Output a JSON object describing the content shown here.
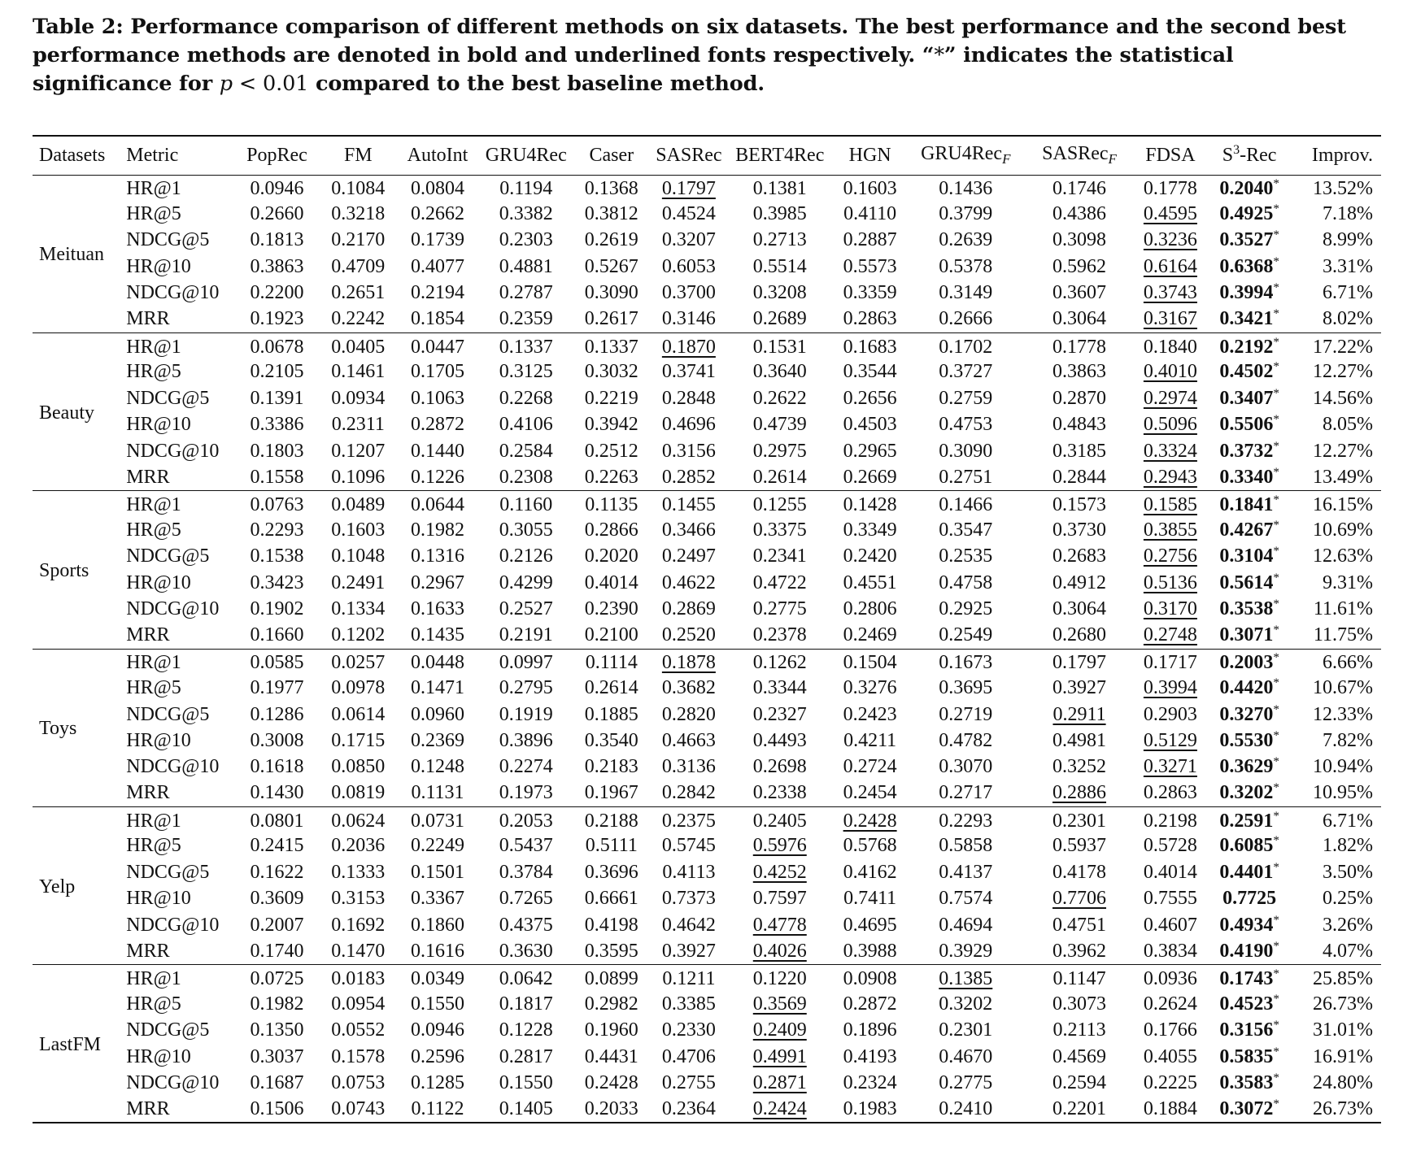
{
  "caption": {
    "part1": "Table 2: Performance comparison of different methods on six datasets. The best performance and the second best performance methods are denoted in bold and underlined fonts respectively. “",
    "star": "*",
    "part2": "” indicates the statistical significance for ",
    "p": "p",
    "lt": " < 0.01",
    "part3": " compared to the best baseline method."
  },
  "headers": {
    "datasets": "Datasets",
    "metric": "Metric",
    "methods": [
      "PopRec",
      "FM",
      "AutoInt",
      "GRU4Rec",
      "Caser",
      "SASRec",
      "BERT4Rec",
      "HGN",
      "GRU4Rec",
      "SASRec",
      "FDSA",
      "S",
      "Improv."
    ],
    "subscript_f": "F",
    "s3_sup": "3",
    "s3_suffix": "-Rec"
  },
  "groups": [
    {
      "dataset": "Meituan",
      "rows": [
        {
          "metric": "HR@1",
          "values": [
            "0.0946",
            "0.1084",
            "0.0804",
            "0.1194",
            "0.1368",
            "0.1797",
            "0.1381",
            "0.1603",
            "0.1436",
            "0.1746",
            "0.1778",
            "0.2040"
          ],
          "imp": "13.52%",
          "second": 5,
          "sig": true
        },
        {
          "metric": "HR@5",
          "values": [
            "0.2660",
            "0.3218",
            "0.2662",
            "0.3382",
            "0.3812",
            "0.4524",
            "0.3985",
            "0.4110",
            "0.3799",
            "0.4386",
            "0.4595",
            "0.4925"
          ],
          "imp": "7.18%",
          "second": 10,
          "sig": true
        },
        {
          "metric": "NDCG@5",
          "values": [
            "0.1813",
            "0.2170",
            "0.1739",
            "0.2303",
            "0.2619",
            "0.3207",
            "0.2713",
            "0.2887",
            "0.2639",
            "0.3098",
            "0.3236",
            "0.3527"
          ],
          "imp": "8.99%",
          "second": 10,
          "sig": true
        },
        {
          "metric": "HR@10",
          "values": [
            "0.3863",
            "0.4709",
            "0.4077",
            "0.4881",
            "0.5267",
            "0.6053",
            "0.5514",
            "0.5573",
            "0.5378",
            "0.5962",
            "0.6164",
            "0.6368"
          ],
          "imp": "3.31%",
          "second": 10,
          "sig": true
        },
        {
          "metric": "NDCG@10",
          "values": [
            "0.2200",
            "0.2651",
            "0.2194",
            "0.2787",
            "0.3090",
            "0.3700",
            "0.3208",
            "0.3359",
            "0.3149",
            "0.3607",
            "0.3743",
            "0.3994"
          ],
          "imp": "6.71%",
          "second": 10,
          "sig": true
        },
        {
          "metric": "MRR",
          "values": [
            "0.1923",
            "0.2242",
            "0.1854",
            "0.2359",
            "0.2617",
            "0.3146",
            "0.2689",
            "0.2863",
            "0.2666",
            "0.3064",
            "0.3167",
            "0.3421"
          ],
          "imp": "8.02%",
          "second": 10,
          "sig": true
        }
      ]
    },
    {
      "dataset": "Beauty",
      "rows": [
        {
          "metric": "HR@1",
          "values": [
            "0.0678",
            "0.0405",
            "0.0447",
            "0.1337",
            "0.1337",
            "0.1870",
            "0.1531",
            "0.1683",
            "0.1702",
            "0.1778",
            "0.1840",
            "0.2192"
          ],
          "imp": "17.22%",
          "second": 5,
          "sig": true
        },
        {
          "metric": "HR@5",
          "values": [
            "0.2105",
            "0.1461",
            "0.1705",
            "0.3125",
            "0.3032",
            "0.3741",
            "0.3640",
            "0.3544",
            "0.3727",
            "0.3863",
            "0.4010",
            "0.4502"
          ],
          "imp": "12.27%",
          "second": 10,
          "sig": true
        },
        {
          "metric": "NDCG@5",
          "values": [
            "0.1391",
            "0.0934",
            "0.1063",
            "0.2268",
            "0.2219",
            "0.2848",
            "0.2622",
            "0.2656",
            "0.2759",
            "0.2870",
            "0.2974",
            "0.3407"
          ],
          "imp": "14.56%",
          "second": 10,
          "sig": true
        },
        {
          "metric": "HR@10",
          "values": [
            "0.3386",
            "0.2311",
            "0.2872",
            "0.4106",
            "0.3942",
            "0.4696",
            "0.4739",
            "0.4503",
            "0.4753",
            "0.4843",
            "0.5096",
            "0.5506"
          ],
          "imp": "8.05%",
          "second": 10,
          "sig": true
        },
        {
          "metric": "NDCG@10",
          "values": [
            "0.1803",
            "0.1207",
            "0.1440",
            "0.2584",
            "0.2512",
            "0.3156",
            "0.2975",
            "0.2965",
            "0.3090",
            "0.3185",
            "0.3324",
            "0.3732"
          ],
          "imp": "12.27%",
          "second": 10,
          "sig": true
        },
        {
          "metric": "MRR",
          "values": [
            "0.1558",
            "0.1096",
            "0.1226",
            "0.2308",
            "0.2263",
            "0.2852",
            "0.2614",
            "0.2669",
            "0.2751",
            "0.2844",
            "0.2943",
            "0.3340"
          ],
          "imp": "13.49%",
          "second": 10,
          "sig": true
        }
      ]
    },
    {
      "dataset": "Sports",
      "rows": [
        {
          "metric": "HR@1",
          "values": [
            "0.0763",
            "0.0489",
            "0.0644",
            "0.1160",
            "0.1135",
            "0.1455",
            "0.1255",
            "0.1428",
            "0.1466",
            "0.1573",
            "0.1585",
            "0.1841"
          ],
          "imp": "16.15%",
          "second": 10,
          "sig": true
        },
        {
          "metric": "HR@5",
          "values": [
            "0.2293",
            "0.1603",
            "0.1982",
            "0.3055",
            "0.2866",
            "0.3466",
            "0.3375",
            "0.3349",
            "0.3547",
            "0.3730",
            "0.3855",
            "0.4267"
          ],
          "imp": "10.69%",
          "second": 10,
          "sig": true
        },
        {
          "metric": "NDCG@5",
          "values": [
            "0.1538",
            "0.1048",
            "0.1316",
            "0.2126",
            "0.2020",
            "0.2497",
            "0.2341",
            "0.2420",
            "0.2535",
            "0.2683",
            "0.2756",
            "0.3104"
          ],
          "imp": "12.63%",
          "second": 10,
          "sig": true
        },
        {
          "metric": "HR@10",
          "values": [
            "0.3423",
            "0.2491",
            "0.2967",
            "0.4299",
            "0.4014",
            "0.4622",
            "0.4722",
            "0.4551",
            "0.4758",
            "0.4912",
            "0.5136",
            "0.5614"
          ],
          "imp": "9.31%",
          "second": 10,
          "sig": true
        },
        {
          "metric": "NDCG@10",
          "values": [
            "0.1902",
            "0.1334",
            "0.1633",
            "0.2527",
            "0.2390",
            "0.2869",
            "0.2775",
            "0.2806",
            "0.2925",
            "0.3064",
            "0.3170",
            "0.3538"
          ],
          "imp": "11.61%",
          "second": 10,
          "sig": true
        },
        {
          "metric": "MRR",
          "values": [
            "0.1660",
            "0.1202",
            "0.1435",
            "0.2191",
            "0.2100",
            "0.2520",
            "0.2378",
            "0.2469",
            "0.2549",
            "0.2680",
            "0.2748",
            "0.3071"
          ],
          "imp": "11.75%",
          "second": 10,
          "sig": true
        }
      ]
    },
    {
      "dataset": "Toys",
      "rows": [
        {
          "metric": "HR@1",
          "values": [
            "0.0585",
            "0.0257",
            "0.0448",
            "0.0997",
            "0.1114",
            "0.1878",
            "0.1262",
            "0.1504",
            "0.1673",
            "0.1797",
            "0.1717",
            "0.2003"
          ],
          "imp": "6.66%",
          "second": 5,
          "sig": true
        },
        {
          "metric": "HR@5",
          "values": [
            "0.1977",
            "0.0978",
            "0.1471",
            "0.2795",
            "0.2614",
            "0.3682",
            "0.3344",
            "0.3276",
            "0.3695",
            "0.3927",
            "0.3994",
            "0.4420"
          ],
          "imp": "10.67%",
          "second": 10,
          "sig": true
        },
        {
          "metric": "NDCG@5",
          "values": [
            "0.1286",
            "0.0614",
            "0.0960",
            "0.1919",
            "0.1885",
            "0.2820",
            "0.2327",
            "0.2423",
            "0.2719",
            "0.2911",
            "0.2903",
            "0.3270"
          ],
          "imp": "12.33%",
          "second": 9,
          "sig": true
        },
        {
          "metric": "HR@10",
          "values": [
            "0.3008",
            "0.1715",
            "0.2369",
            "0.3896",
            "0.3540",
            "0.4663",
            "0.4493",
            "0.4211",
            "0.4782",
            "0.4981",
            "0.5129",
            "0.5530"
          ],
          "imp": "7.82%",
          "second": 10,
          "sig": true
        },
        {
          "metric": "NDCG@10",
          "values": [
            "0.1618",
            "0.0850",
            "0.1248",
            "0.2274",
            "0.2183",
            "0.3136",
            "0.2698",
            "0.2724",
            "0.3070",
            "0.3252",
            "0.3271",
            "0.3629"
          ],
          "imp": "10.94%",
          "second": 10,
          "sig": true
        },
        {
          "metric": "MRR",
          "values": [
            "0.1430",
            "0.0819",
            "0.1131",
            "0.1973",
            "0.1967",
            "0.2842",
            "0.2338",
            "0.2454",
            "0.2717",
            "0.2886",
            "0.2863",
            "0.3202"
          ],
          "imp": "10.95%",
          "second": 9,
          "sig": true
        }
      ]
    },
    {
      "dataset": "Yelp",
      "rows": [
        {
          "metric": "HR@1",
          "values": [
            "0.0801",
            "0.0624",
            "0.0731",
            "0.2053",
            "0.2188",
            "0.2375",
            "0.2405",
            "0.2428",
            "0.2293",
            "0.2301",
            "0.2198",
            "0.2591"
          ],
          "imp": "6.71%",
          "second": 7,
          "sig": true
        },
        {
          "metric": "HR@5",
          "values": [
            "0.2415",
            "0.2036",
            "0.2249",
            "0.5437",
            "0.5111",
            "0.5745",
            "0.5976",
            "0.5768",
            "0.5858",
            "0.5937",
            "0.5728",
            "0.6085"
          ],
          "imp": "1.82%",
          "second": 6,
          "sig": true
        },
        {
          "metric": "NDCG@5",
          "values": [
            "0.1622",
            "0.1333",
            "0.1501",
            "0.3784",
            "0.3696",
            "0.4113",
            "0.4252",
            "0.4162",
            "0.4137",
            "0.4178",
            "0.4014",
            "0.4401"
          ],
          "imp": "3.50%",
          "second": 6,
          "sig": true
        },
        {
          "metric": "HR@10",
          "values": [
            "0.3609",
            "0.3153",
            "0.3367",
            "0.7265",
            "0.6661",
            "0.7373",
            "0.7597",
            "0.7411",
            "0.7574",
            "0.7706",
            "0.7555",
            "0.7725"
          ],
          "imp": "0.25%",
          "second": 9,
          "sig": false
        },
        {
          "metric": "NDCG@10",
          "values": [
            "0.2007",
            "0.1692",
            "0.1860",
            "0.4375",
            "0.4198",
            "0.4642",
            "0.4778",
            "0.4695",
            "0.4694",
            "0.4751",
            "0.4607",
            "0.4934"
          ],
          "imp": "3.26%",
          "second": 6,
          "sig": true
        },
        {
          "metric": "MRR",
          "values": [
            "0.1740",
            "0.1470",
            "0.1616",
            "0.3630",
            "0.3595",
            "0.3927",
            "0.4026",
            "0.3988",
            "0.3929",
            "0.3962",
            "0.3834",
            "0.4190"
          ],
          "imp": "4.07%",
          "second": 6,
          "sig": true
        }
      ]
    },
    {
      "dataset": "LastFM",
      "rows": [
        {
          "metric": "HR@1",
          "values": [
            "0.0725",
            "0.0183",
            "0.0349",
            "0.0642",
            "0.0899",
            "0.1211",
            "0.1220",
            "0.0908",
            "0.1385",
            "0.1147",
            "0.0936",
            "0.1743"
          ],
          "imp": "25.85%",
          "second": 8,
          "sig": true
        },
        {
          "metric": "HR@5",
          "values": [
            "0.1982",
            "0.0954",
            "0.1550",
            "0.1817",
            "0.2982",
            "0.3385",
            "0.3569",
            "0.2872",
            "0.3202",
            "0.3073",
            "0.2624",
            "0.4523"
          ],
          "imp": "26.73%",
          "second": 6,
          "sig": true
        },
        {
          "metric": "NDCG@5",
          "values": [
            "0.1350",
            "0.0552",
            "0.0946",
            "0.1228",
            "0.1960",
            "0.2330",
            "0.2409",
            "0.1896",
            "0.2301",
            "0.2113",
            "0.1766",
            "0.3156"
          ],
          "imp": "31.01%",
          "second": 6,
          "sig": true
        },
        {
          "metric": "HR@10",
          "values": [
            "0.3037",
            "0.1578",
            "0.2596",
            "0.2817",
            "0.4431",
            "0.4706",
            "0.4991",
            "0.4193",
            "0.4670",
            "0.4569",
            "0.4055",
            "0.5835"
          ],
          "imp": "16.91%",
          "second": 6,
          "sig": true
        },
        {
          "metric": "NDCG@10",
          "values": [
            "0.1687",
            "0.0753",
            "0.1285",
            "0.1550",
            "0.2428",
            "0.2755",
            "0.2871",
            "0.2324",
            "0.2775",
            "0.2594",
            "0.2225",
            "0.3583"
          ],
          "imp": "24.80%",
          "second": 6,
          "sig": true
        },
        {
          "metric": "MRR",
          "values": [
            "0.1506",
            "0.0743",
            "0.1122",
            "0.1405",
            "0.2033",
            "0.2364",
            "0.2424",
            "0.1983",
            "0.2410",
            "0.2201",
            "0.1884",
            "0.3072"
          ],
          "imp": "26.73%",
          "second": 6,
          "sig": true
        }
      ]
    }
  ]
}
